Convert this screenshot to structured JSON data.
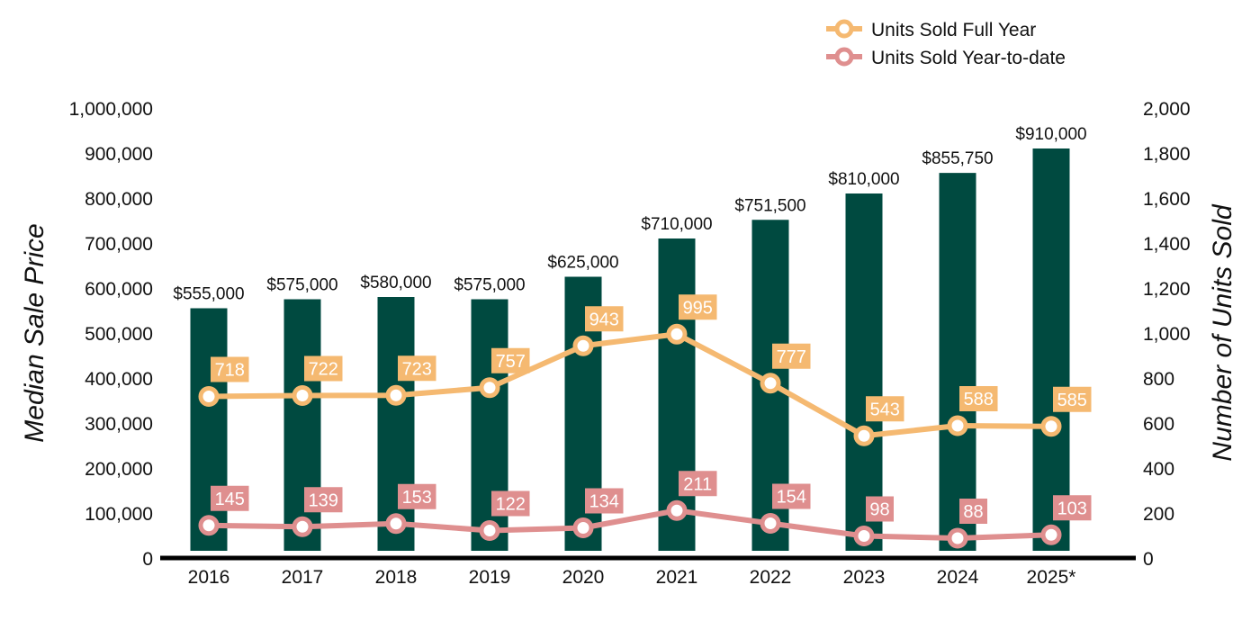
{
  "chart_data": {
    "type": "bar",
    "categories": [
      "2016",
      "2017",
      "2018",
      "2019",
      "2020",
      "2021",
      "2022",
      "2023",
      "2024",
      "2025*"
    ],
    "series": [
      {
        "axis": "left",
        "kind": "bar",
        "values": [
          555000,
          575000,
          580000,
          575000,
          625000,
          710000,
          751500,
          810000,
          855750,
          910000
        ],
        "labels": [
          "$555,000",
          "$575,000",
          "$580,000",
          "$575,000",
          "$625,000",
          "$710,000",
          "$751,500",
          "$810,000",
          "$855,750",
          "$910,000"
        ],
        "color": "#004a40"
      },
      {
        "name": "Units Sold Full Year",
        "axis": "right",
        "kind": "line",
        "values": [
          718,
          722,
          723,
          757,
          943,
          995,
          777,
          543,
          588,
          585
        ],
        "color": "#f5b971"
      },
      {
        "name": "Units Sold Year-to-date",
        "axis": "right",
        "kind": "line",
        "values": [
          145,
          139,
          153,
          122,
          134,
          211,
          154,
          98,
          88,
          103
        ],
        "color": "#df8f8f"
      }
    ],
    "ylabel": "Median Sale Price",
    "y2label": "Number of Units Sold",
    "ylim": [
      0,
      1000000
    ],
    "y2lim": [
      0,
      2000
    ],
    "yticks": [
      "0",
      "100,000",
      "200,000",
      "300,000",
      "400,000",
      "500,000",
      "600,000",
      "700,000",
      "800,000",
      "900,000",
      "1,000,000"
    ],
    "y2ticks": [
      "0",
      "200",
      "400",
      "600",
      "800",
      "1,000",
      "1,200",
      "1,400",
      "1,600",
      "1,800",
      "2,000"
    ],
    "legend_position": "top-right",
    "grid": false
  }
}
